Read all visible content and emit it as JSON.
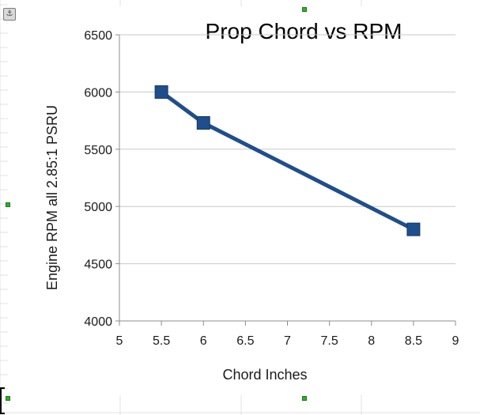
{
  "icons": {
    "anchor": "anchor-icon"
  },
  "colors": {
    "series": "#1f4e8c",
    "grid": "#c8c8c8",
    "axis": "#8c8c8c",
    "handle": "#2fae2f"
  },
  "chart_data": {
    "type": "line",
    "title": "Prop Chord vs RPM",
    "xlabel": "Chord Inches",
    "ylabel": "Engine RPM all 2.85:1 PSRU",
    "xlim": [
      5,
      9
    ],
    "ylim": [
      4000,
      6500
    ],
    "x_ticks": [
      "5",
      "5.5",
      "6",
      "6.5",
      "7",
      "7.5",
      "8",
      "8.5",
      "9"
    ],
    "y_ticks": [
      "4000",
      "4500",
      "5000",
      "5500",
      "6000",
      "6500"
    ],
    "grid": "horizontal",
    "legend": "none",
    "series": [
      {
        "x": [
          5.5,
          6,
          8.5
        ],
        "values": [
          6000,
          5730,
          4800
        ]
      }
    ]
  }
}
